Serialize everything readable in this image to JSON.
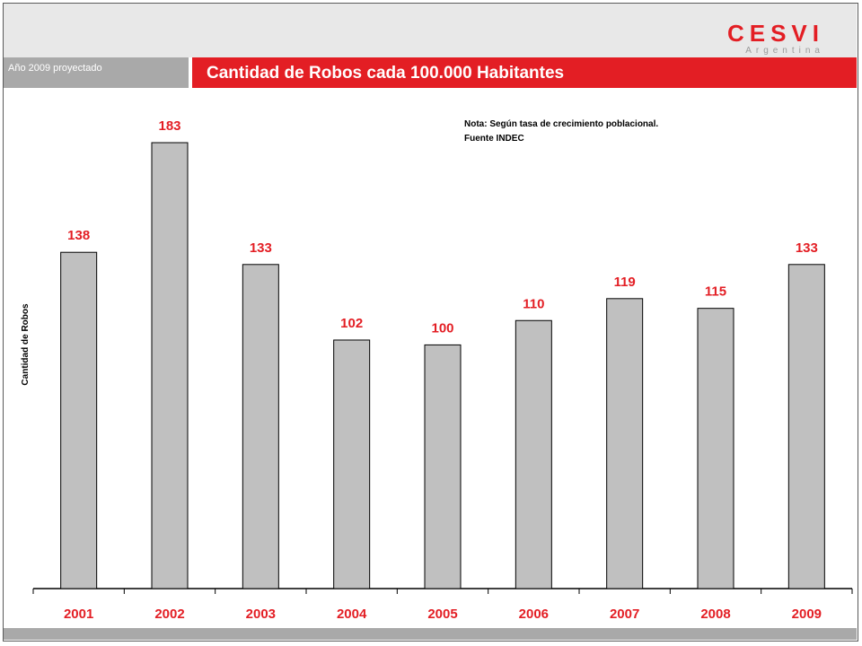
{
  "header": {
    "logo_main": "CESVI",
    "logo_sub": "Argentina",
    "subtitle": "Año 2009 proyectado",
    "title": "Cantidad de Robos cada 100.000 Habitantes"
  },
  "note": {
    "line1": "Nota: Según tasa de crecimiento poblacional.",
    "line2": "Fuente INDEC"
  },
  "colors": {
    "accent": "#e31e24",
    "bar_fill": "#c0c0c0",
    "label": "#e31e24"
  },
  "chart_data": {
    "type": "bar",
    "title": "Cantidad de Robos cada 100.000 Habitantes",
    "xlabel": "",
    "ylabel": "Cantidad de Robos",
    "categories": [
      "2001",
      "2002",
      "2003",
      "2004",
      "2005",
      "2006",
      "2007",
      "2008",
      "2009"
    ],
    "values": [
      138,
      183,
      133,
      102,
      100,
      110,
      119,
      115,
      133
    ],
    "ylim": [
      0,
      183
    ],
    "grid": false,
    "legend": "none"
  }
}
